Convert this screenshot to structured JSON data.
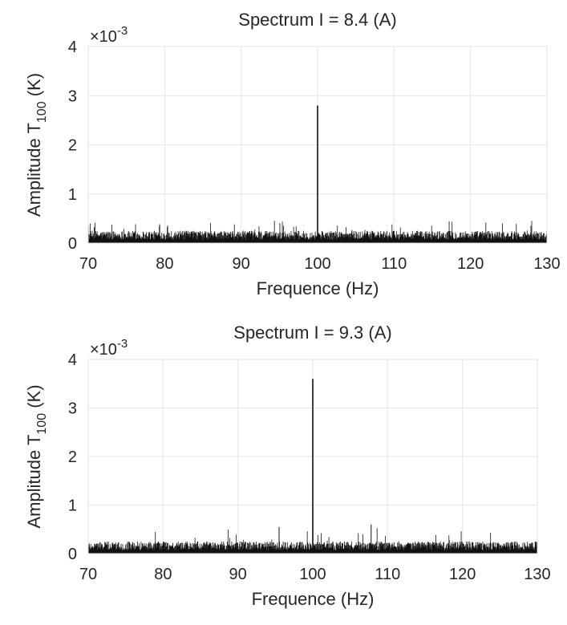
{
  "chart_data": [
    {
      "type": "line",
      "title": "Spectrum I = 8.4 (A)",
      "xlabel": "Frequence (Hz)",
      "ylabel": {
        "prefix": "Amplitude T",
        "subscript": "100",
        "suffix": " (K)"
      },
      "y_exponent": {
        "base": "×10",
        "power": "-3"
      },
      "xlim": [
        70,
        130
      ],
      "ylim": [
        0,
        4
      ],
      "x_ticks": [
        70,
        80,
        90,
        100,
        110,
        120,
        130
      ],
      "y_ticks": [
        0,
        1,
        2,
        3,
        4
      ],
      "grid": true,
      "series": [
        {
          "noise_floor_typical": 0.2,
          "noise_floor_max": 0.5,
          "peaks": [
            {
              "x": 100,
              "y": 2.8
            }
          ]
        }
      ]
    },
    {
      "type": "line",
      "title": "Spectrum I = 9.3 (A)",
      "xlabel": "Frequence (Hz)",
      "ylabel": {
        "prefix": "Amplitude T",
        "subscript": "100",
        "suffix": " (K)"
      },
      "y_exponent": {
        "base": "×10",
        "power": "-3"
      },
      "xlim": [
        70,
        130
      ],
      "ylim": [
        0,
        4
      ],
      "x_ticks": [
        70,
        80,
        90,
        100,
        110,
        120,
        130
      ],
      "y_ticks": [
        0,
        1,
        2,
        3,
        4
      ],
      "grid": true,
      "series": [
        {
          "noise_floor_typical": 0.2,
          "noise_floor_max": 0.6,
          "peaks": [
            {
              "x": 100,
              "y": 3.6
            },
            {
              "x": 95.5,
              "y": 0.55
            },
            {
              "x": 107.8,
              "y": 0.6
            }
          ]
        }
      ]
    }
  ]
}
